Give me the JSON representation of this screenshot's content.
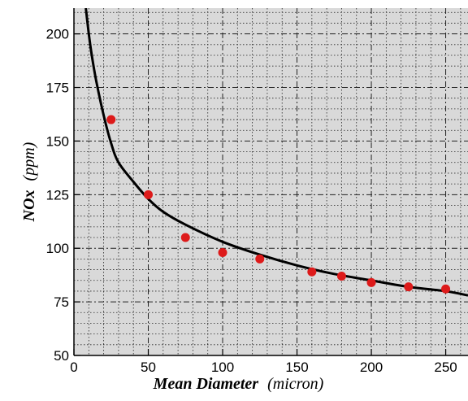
{
  "chart_data": {
    "type": "scatter",
    "title": "",
    "xlabel": {
      "name": "Mean Diameter",
      "unit": "(micron)"
    },
    "ylabel": {
      "name": "NOx",
      "unit": "(ppm)"
    },
    "xlim": [
      0,
      265
    ],
    "ylim": [
      50,
      212
    ],
    "grid": true,
    "x_ticks": [
      0,
      50,
      100,
      150,
      200,
      250
    ],
    "y_ticks": [
      50,
      75,
      100,
      125,
      150,
      175,
      200
    ],
    "x_tick_labels": [
      "0",
      "50",
      "100",
      "150",
      "200",
      "250"
    ],
    "y_tick_labels": [
      "50",
      "75",
      "100",
      "125",
      "150",
      "175",
      "200"
    ],
    "series": [
      {
        "kind": "points",
        "color": "#dd1a1a",
        "x": [
          25,
          50,
          75,
          100,
          125,
          160,
          180,
          200,
          225,
          250
        ],
        "y": [
          160,
          125,
          105,
          98,
          95,
          89,
          87,
          84,
          82,
          81
        ]
      },
      {
        "kind": "fit-curve",
        "color": "#000000",
        "x": [
          8,
          10,
          12,
          15,
          20,
          25,
          30,
          40,
          50,
          60,
          75,
          100,
          125,
          150,
          175,
          200,
          225,
          250,
          265
        ],
        "y": [
          212,
          200,
          190,
          178,
          162,
          149,
          140,
          131,
          123,
          117,
          111,
          103,
          97,
          92,
          88,
          85,
          82,
          80,
          78
        ]
      }
    ],
    "colors": {
      "plot_background": "#d9d9d9",
      "grid": "#222222",
      "axis": "#000000"
    }
  }
}
